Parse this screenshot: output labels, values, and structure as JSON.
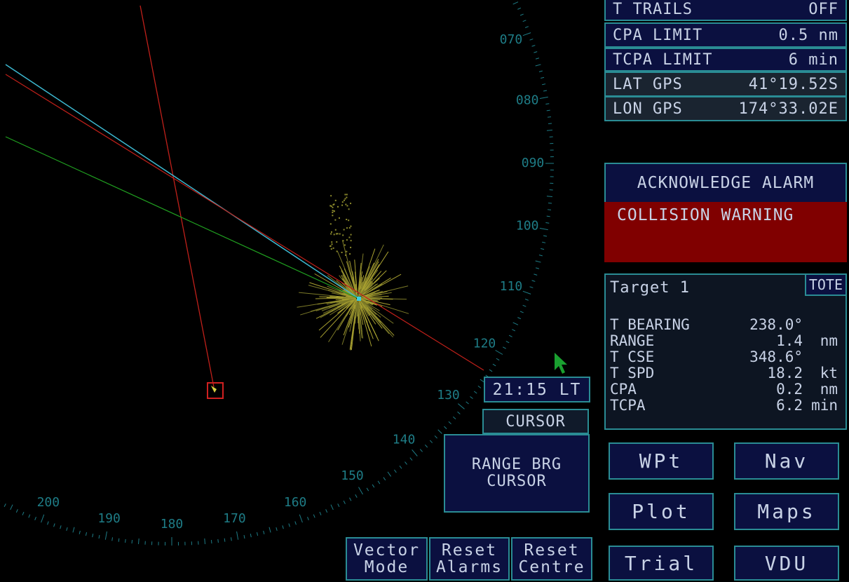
{
  "bearing_ring": {
    "labels": [
      "070",
      "080",
      "090",
      "100",
      "110",
      "120",
      "130",
      "140",
      "150",
      "160",
      "170",
      "180",
      "190",
      "200"
    ]
  },
  "settings": [
    {
      "label": "T TRAILS",
      "value": "OFF"
    },
    {
      "label": "CPA LIMIT",
      "value": "0.5 nm"
    },
    {
      "label": "TCPA LIMIT",
      "value": "6 min"
    },
    {
      "label": "LAT GPS",
      "value": "41°19.52S"
    },
    {
      "label": "LON GPS",
      "value": "174°33.02E"
    }
  ],
  "alarm": {
    "button": "ACKNOWLEDGE ALARM",
    "warning": "COLLISION WARNING"
  },
  "target": {
    "title": "Target 1",
    "tote": "TOTE",
    "rows": [
      {
        "label": "T BEARING",
        "value": "238.0°",
        "unit": null
      },
      {
        "label": "RANGE",
        "value": "1.4",
        "unit": "nm"
      },
      {
        "label": "T CSE",
        "value": "348.6°",
        "unit": null
      },
      {
        "label": "T SPD",
        "value": "18.2",
        "unit": "kt"
      },
      {
        "label": "CPA",
        "value": "0.2",
        "unit": "nm"
      },
      {
        "label": "TCPA",
        "value": "6.2",
        "unit": "min"
      }
    ]
  },
  "clock": "21:15 LT",
  "cursor": {
    "title": "CURSOR",
    "mode": [
      "RANGE BRG",
      "CURSOR"
    ]
  },
  "bottom_buttons": [
    [
      "Vector",
      "Mode"
    ],
    [
      "Reset",
      "Alarms"
    ],
    [
      "Reset",
      "Centre"
    ]
  ],
  "menu_buttons": [
    "WPt",
    "Nav",
    "Plot",
    "Maps",
    "Trial",
    "VDU"
  ]
}
